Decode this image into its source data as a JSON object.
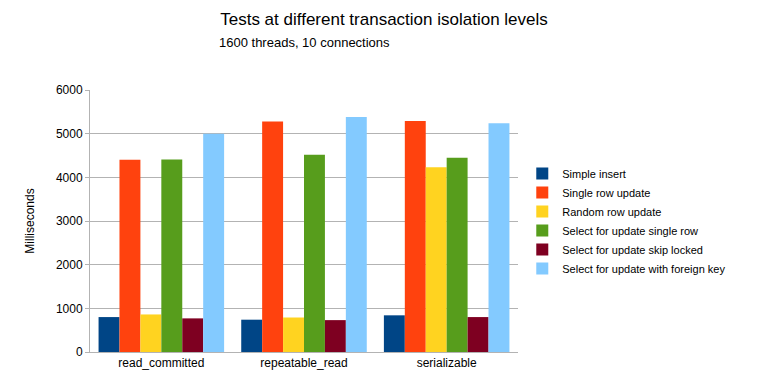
{
  "chart_data": {
    "type": "bar",
    "title": "Tests at different transaction isolation levels",
    "subtitle": "1600 threads, 10 connections",
    "y_label": "Milliseconds",
    "categories": [
      "read_committed",
      "repeatable_read",
      "serializable"
    ],
    "series": [
      {
        "name": "Simple insert",
        "color": "#004586",
        "values": [
          800,
          740,
          840
        ]
      },
      {
        "name": "Single row update",
        "color": "#ff420e",
        "values": [
          4400,
          5280,
          5290
        ]
      },
      {
        "name": "Random row update",
        "color": "#ffd320",
        "values": [
          860,
          790,
          4230
        ]
      },
      {
        "name": "Select for update single row",
        "color": "#579d1c",
        "values": [
          4410,
          4520,
          4450
        ]
      },
      {
        "name": "Select for update skip locked",
        "color": "#7e0021",
        "values": [
          770,
          730,
          800
        ]
      },
      {
        "name": "Select for update with foreign key",
        "color": "#83caff",
        "values": [
          5000,
          5380,
          5240
        ]
      }
    ],
    "ylim": [
      0,
      6000
    ],
    "yticks": [
      0,
      1000,
      2000,
      3000,
      4000,
      5000,
      6000
    ],
    "grid": true,
    "legend": "right"
  }
}
